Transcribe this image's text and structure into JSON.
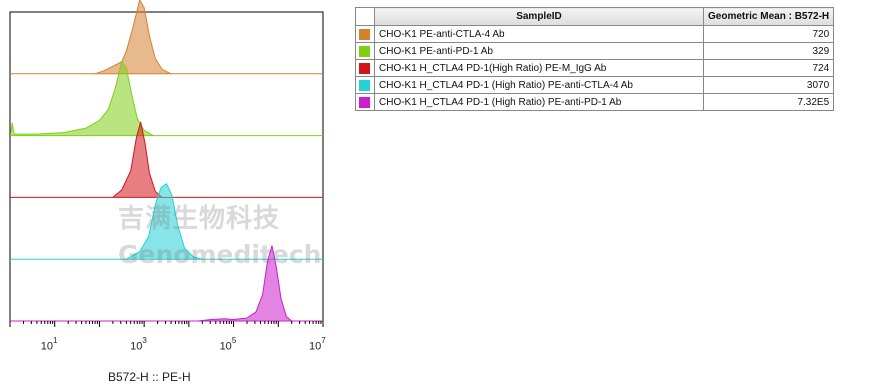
{
  "chart_data": {
    "type": "area",
    "xlabel": "B572-H :: PE-H",
    "x_scale": "log",
    "xlim": [
      1,
      10000000
    ],
    "x_ticks": [
      {
        "base": "10",
        "exp": "1",
        "value": 10
      },
      {
        "base": "10",
        "exp": "3",
        "value": 1000
      },
      {
        "base": "10",
        "exp": "5",
        "value": 100000
      },
      {
        "base": "10",
        "exp": "7",
        "value": 10000000
      }
    ],
    "table_headers": [
      "SampleID",
      "Geometric Mean : B572-H"
    ],
    "series": [
      {
        "name": "CHO-K1 PE-anti-CTLA-4 Ab",
        "color": "#d6802e",
        "geo_mean": "720",
        "peak_log10": 2.92,
        "shape": [
          [
            1.9,
            0
          ],
          [
            2.1,
            0.04
          ],
          [
            2.3,
            0.1
          ],
          [
            2.5,
            0.16
          ],
          [
            2.6,
            0.3
          ],
          [
            2.75,
            0.62
          ],
          [
            2.9,
            0.98
          ],
          [
            3.0,
            0.88
          ],
          [
            3.12,
            0.5
          ],
          [
            3.25,
            0.2
          ],
          [
            3.4,
            0.06
          ],
          [
            3.6,
            0
          ]
        ]
      },
      {
        "name": "CHO-K1 PE-anti-PD-1 Ab",
        "color": "#7fcf17",
        "geo_mean": "329",
        "peak_log10": 2.55,
        "shape": [
          [
            0.02,
            0.05
          ],
          [
            0.05,
            0.17
          ],
          [
            0.09,
            0.02
          ],
          [
            0.6,
            0.02
          ],
          [
            1.2,
            0.04
          ],
          [
            1.7,
            0.1
          ],
          [
            2.0,
            0.2
          ],
          [
            2.2,
            0.35
          ],
          [
            2.35,
            0.62
          ],
          [
            2.5,
            0.98
          ],
          [
            2.6,
            0.9
          ],
          [
            2.72,
            0.55
          ],
          [
            2.85,
            0.22
          ],
          [
            3.0,
            0.07
          ],
          [
            3.2,
            0
          ]
        ]
      },
      {
        "name": "CHO-K1 H_CTLA4 PD-1(High Ratio) PE-M_IgG Ab",
        "color": "#d4141a",
        "geo_mean": "724",
        "peak_log10": 2.95,
        "shape": [
          [
            2.3,
            0
          ],
          [
            2.5,
            0.1
          ],
          [
            2.7,
            0.35
          ],
          [
            2.83,
            0.8
          ],
          [
            2.92,
            1.0
          ],
          [
            3.02,
            0.72
          ],
          [
            3.12,
            0.32
          ],
          [
            3.25,
            0.08
          ],
          [
            3.4,
            0
          ]
        ]
      },
      {
        "name": "CHO-K1 H_CTLA4 PD-1 (High Ratio) PE-anti-CTLA-4 Ab",
        "color": "#27d0d4",
        "geo_mean": "3070",
        "peak_log10": 3.48,
        "shape": [
          [
            2.6,
            0
          ],
          [
            2.9,
            0.1
          ],
          [
            3.1,
            0.3
          ],
          [
            3.25,
            0.72
          ],
          [
            3.38,
            0.95
          ],
          [
            3.5,
            1.0
          ],
          [
            3.62,
            0.85
          ],
          [
            3.75,
            0.45
          ],
          [
            3.9,
            0.15
          ],
          [
            4.1,
            0.03
          ],
          [
            4.3,
            0
          ]
        ]
      },
      {
        "name": "CHO-K1 H_CTLA4 PD-1 (High Ratio) PE-anti-PD-1 Ab",
        "color": "#cc1fcc",
        "geo_mean": "7.32E5",
        "peak_log10": 5.87,
        "shape": [
          [
            4.2,
            0
          ],
          [
            4.5,
            0.02
          ],
          [
            4.8,
            0.03
          ],
          [
            5.0,
            0.02
          ],
          [
            5.3,
            0.04
          ],
          [
            5.5,
            0.12
          ],
          [
            5.65,
            0.35
          ],
          [
            5.76,
            0.8
          ],
          [
            5.86,
            1.0
          ],
          [
            5.96,
            0.7
          ],
          [
            6.06,
            0.3
          ],
          [
            6.18,
            0.06
          ],
          [
            6.3,
            0
          ]
        ]
      }
    ]
  },
  "watermark": {
    "cn": "吉满生物科技",
    "en": "Genomeditech"
  }
}
